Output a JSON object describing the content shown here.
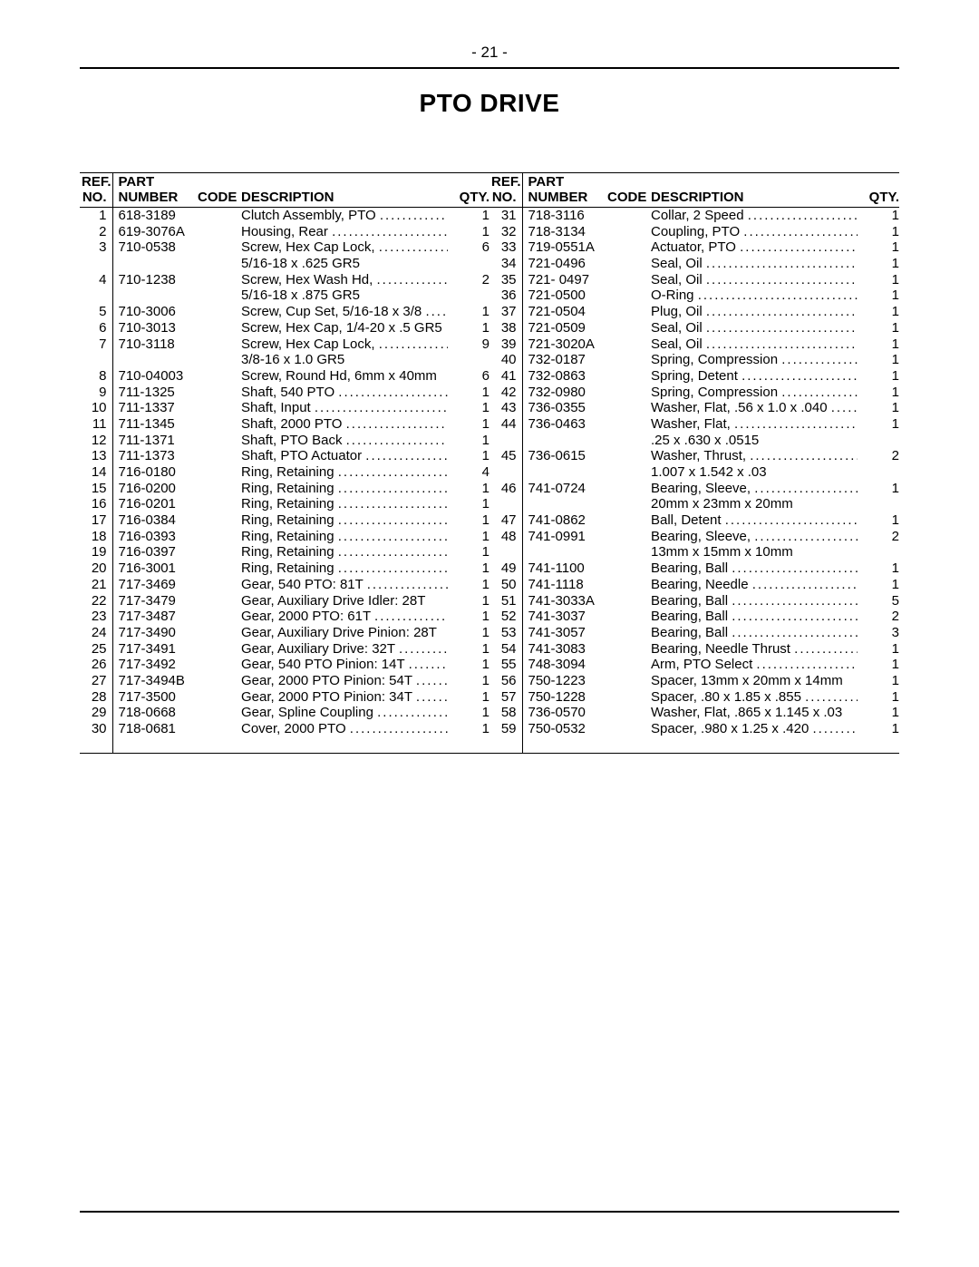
{
  "page_number": "- 21 -",
  "title": "PTO DRIVE",
  "headers": {
    "ref_line1": "REF.",
    "ref_line2": "NO.",
    "part_line1": "PART",
    "part_line2": "NUMBER",
    "code": "CODE",
    "desc": "DESCRIPTION",
    "qty": "QTY."
  },
  "left": [
    {
      "ref": "1",
      "part": "618-3189",
      "desc": "Clutch Assembly, PTO",
      "qty": "1"
    },
    {
      "ref": "2",
      "part": "619-3076A",
      "desc": "Housing, Rear",
      "qty": "1"
    },
    {
      "ref": "3",
      "part": "710-0538",
      "desc": "Screw, Hex Cap Lock,",
      "sub": "5/16-18 x .625 GR5",
      "qty": "6"
    },
    {
      "ref": "4",
      "part": "710-1238",
      "desc": "Screw, Hex Wash Hd,",
      "sub": "5/16-18 x .875 GR5",
      "qty": "2"
    },
    {
      "ref": "5",
      "part": "710-3006",
      "desc": "Screw, Cup Set, 5/16-18 x 3/8",
      "qty": "1"
    },
    {
      "ref": "6",
      "part": "710-3013",
      "desc": "Screw, Hex Cap, 1/4-20 x .5 GR5",
      "qty": "1",
      "tight": true
    },
    {
      "ref": "7",
      "part": "710-3118",
      "desc": "Screw, Hex Cap Lock,",
      "sub": "3/8-16 x 1.0 GR5",
      "qty": "9"
    },
    {
      "ref": "8",
      "part": "710-04003",
      "desc": "Screw, Round Hd, 6mm x 40mm",
      "qty": "6",
      "tight": true
    },
    {
      "ref": "9",
      "part": "711-1325",
      "desc": "Shaft, 540 PTO",
      "qty": "1"
    },
    {
      "ref": "10",
      "part": "711-1337",
      "desc": "Shaft, Input",
      "qty": "1"
    },
    {
      "ref": "11",
      "part": "711-1345",
      "desc": "Shaft, 2000 PTO",
      "qty": "1"
    },
    {
      "ref": "12",
      "part": "711-1371",
      "desc": "Shaft, PTO Back",
      "qty": "1"
    },
    {
      "ref": "13",
      "part": "711-1373",
      "desc": "Shaft, PTO Actuator",
      "qty": "1"
    },
    {
      "ref": "14",
      "part": "716-0180",
      "desc": "Ring, Retaining",
      "qty": "4"
    },
    {
      "ref": "15",
      "part": "716-0200",
      "desc": "Ring, Retaining",
      "qty": "1"
    },
    {
      "ref": "16",
      "part": "716-0201",
      "desc": "Ring, Retaining",
      "qty": "1"
    },
    {
      "ref": "17",
      "part": "716-0384",
      "desc": "Ring, Retaining",
      "qty": "1"
    },
    {
      "ref": "18",
      "part": "716-0393",
      "desc": "Ring, Retaining",
      "qty": "1"
    },
    {
      "ref": "19",
      "part": "716-0397",
      "desc": "Ring, Retaining",
      "qty": "1"
    },
    {
      "ref": "20",
      "part": "716-3001",
      "desc": "Ring, Retaining",
      "qty": "1"
    },
    {
      "ref": "21",
      "part": "717-3469",
      "desc": "Gear, 540 PTO: 81T",
      "qty": "1"
    },
    {
      "ref": "22",
      "part": "717-3479",
      "desc": "Gear, Auxiliary Drive Idler: 28T",
      "qty": "1",
      "tight": true
    },
    {
      "ref": "23",
      "part": "717-3487",
      "desc": "Gear, 2000 PTO: 61T",
      "qty": "1"
    },
    {
      "ref": "24",
      "part": "717-3490",
      "desc": "Gear, Auxiliary Drive Pinion: 28T",
      "qty": "1",
      "tight": true
    },
    {
      "ref": "25",
      "part": "717-3491",
      "desc": "Gear, Auxiliary Drive: 32T",
      "qty": "1"
    },
    {
      "ref": "26",
      "part": "717-3492",
      "desc": "Gear, 540 PTO Pinion: 14T",
      "qty": "1"
    },
    {
      "ref": "27",
      "part": "717-3494B",
      "desc": "Gear, 2000 PTO Pinion: 54T",
      "qty": "1"
    },
    {
      "ref": "28",
      "part": "717-3500",
      "desc": "Gear, 2000 PTO Pinion: 34T",
      "qty": "1"
    },
    {
      "ref": "29",
      "part": "718-0668",
      "desc": "Gear, Spline Coupling",
      "qty": "1"
    },
    {
      "ref": "30",
      "part": "718-0681",
      "desc": "Cover, 2000 PTO",
      "qty": "1"
    }
  ],
  "right": [
    {
      "ref": "31",
      "part": "718-3116",
      "desc": "Collar, 2 Speed",
      "qty": "1"
    },
    {
      "ref": "32",
      "part": "718-3134",
      "desc": "Coupling, PTO",
      "qty": "1"
    },
    {
      "ref": "33",
      "part": "719-0551A",
      "desc": "Actuator, PTO",
      "qty": "1"
    },
    {
      "ref": "34",
      "part": "721-0496",
      "desc": "Seal, Oil",
      "qty": "1"
    },
    {
      "ref": "35",
      "part": "721- 0497",
      "desc": "Seal, Oil",
      "qty": "1"
    },
    {
      "ref": "36",
      "part": "721-0500",
      "desc": "O-Ring",
      "qty": "1"
    },
    {
      "ref": "37",
      "part": "721-0504",
      "desc": "Plug, Oil",
      "qty": "1"
    },
    {
      "ref": "38",
      "part": "721-0509",
      "desc": "Seal, Oil",
      "qty": "1"
    },
    {
      "ref": "39",
      "part": "721-3020A",
      "desc": "Seal, Oil",
      "qty": "1"
    },
    {
      "ref": "40",
      "part": "732-0187",
      "desc": "Spring, Compression",
      "qty": "1"
    },
    {
      "ref": "41",
      "part": "732-0863",
      "desc": "Spring, Detent",
      "qty": "1"
    },
    {
      "ref": "42",
      "part": "732-0980",
      "desc": "Spring, Compression",
      "qty": "1"
    },
    {
      "ref": "43",
      "part": "736-0355",
      "desc": "Washer, Flat, .56 x 1.0 x .040",
      "qty": "1"
    },
    {
      "ref": "44",
      "part": "736-0463",
      "desc": "Washer, Flat,",
      "sub": ".25 x .630 x .0515",
      "qty": "1"
    },
    {
      "ref": "45",
      "part": "736-0615",
      "desc": "Washer, Thrust,",
      "sub": "1.007 x 1.542 x .03",
      "qty": "2"
    },
    {
      "ref": "46",
      "part": "741-0724",
      "desc": "Bearing, Sleeve,",
      "sub": "20mm x 23mm x 20mm",
      "qty": "1"
    },
    {
      "ref": "47",
      "part": "741-0862",
      "desc": "Ball, Detent",
      "qty": "1"
    },
    {
      "ref": "48",
      "part": "741-0991",
      "desc": "Bearing, Sleeve,",
      "sub": "13mm x 15mm x 10mm",
      "qty": "2"
    },
    {
      "ref": "49",
      "part": "741-1100",
      "desc": "Bearing, Ball",
      "qty": "1"
    },
    {
      "ref": "50",
      "part": "741-1118",
      "desc": "Bearing, Needle",
      "qty": "1"
    },
    {
      "ref": "51",
      "part": "741-3033A",
      "desc": "Bearing, Ball",
      "qty": "5"
    },
    {
      "ref": "52",
      "part": "741-3037",
      "desc": "Bearing, Ball",
      "qty": "2"
    },
    {
      "ref": "53",
      "part": "741-3057",
      "desc": "Bearing, Ball",
      "qty": "3"
    },
    {
      "ref": "54",
      "part": "741-3083",
      "desc": "Bearing, Needle Thrust",
      "qty": "1"
    },
    {
      "ref": "55",
      "part": "748-3094",
      "desc": "Arm, PTO Select",
      "qty": "1"
    },
    {
      "ref": "56",
      "part": "750-1223",
      "desc": "Spacer, 13mm x 20mm x 14mm",
      "qty": "1",
      "tight": true
    },
    {
      "ref": "57",
      "part": "750-1228",
      "desc": "Spacer, .80 x 1.85 x .855",
      "qty": "1"
    },
    {
      "ref": "58",
      "part": "736-0570",
      "desc": "Washer, Flat, .865 x 1.145 x .03",
      "qty": "1",
      "tight": true
    },
    {
      "ref": "59",
      "part": "750-0532",
      "desc": "Spacer, .980 x 1.25 x .420",
      "qty": "1"
    }
  ]
}
